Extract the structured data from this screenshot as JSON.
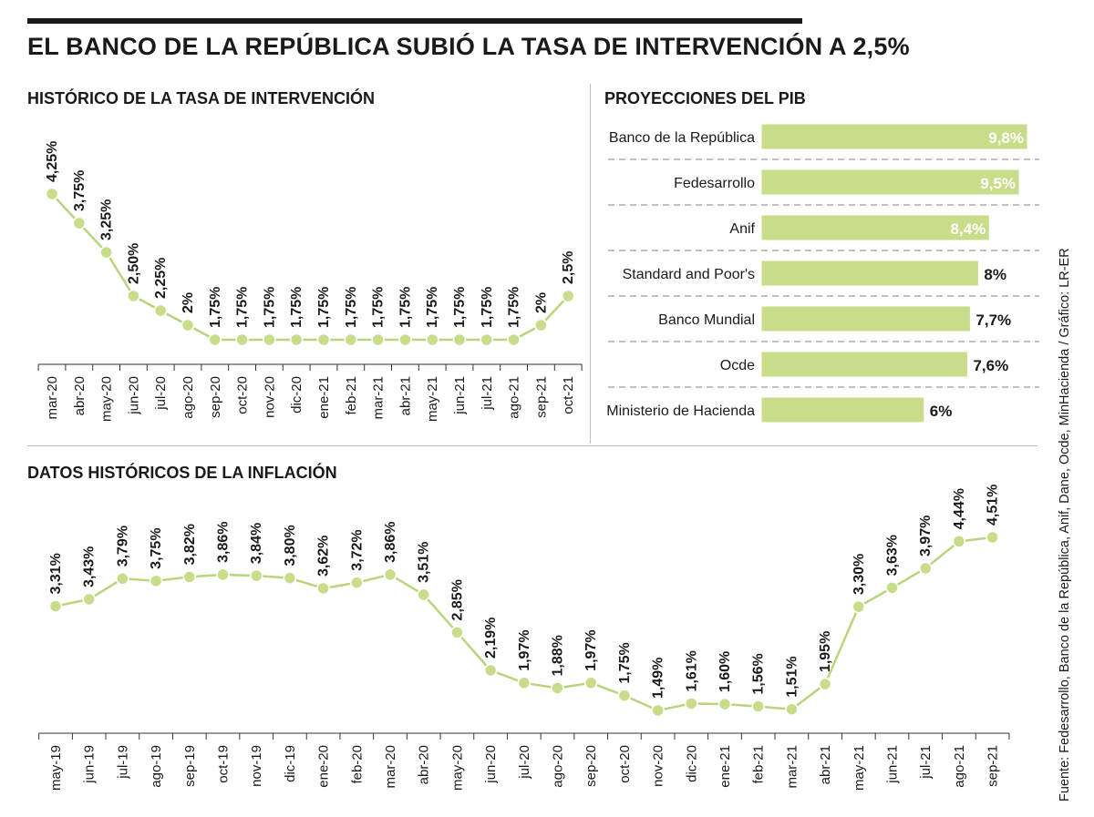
{
  "title": "EL BANCO DE LA REPÚBLICA SUBIÓ LA TASA DE INTERVENCIÓN A 2,5%",
  "source": "Fuente: Fedesarrollo, Banco de la República, Anif, Dane, Ocde, MinHacienda / Gráfico: LR-ER",
  "colors": {
    "accent": "#c8dc8a",
    "line": "#b9d47c",
    "text": "#1a1a1a",
    "bar_label_inside": "#ffffff"
  },
  "chart_data": [
    {
      "type": "line",
      "title": "HISTÓRICO DE LA TASA DE INTERVENCIÓN",
      "categories": [
        "mar-20",
        "abr-20",
        "may-20",
        "jun-20",
        "jul-20",
        "ago-20",
        "sep-20",
        "oct-20",
        "nov-20",
        "dic-20",
        "ene-21",
        "feb-21",
        "mar-21",
        "abr-21",
        "may-21",
        "jun-21",
        "jul-21",
        "ago-21",
        "sep-21",
        "oct-21"
      ],
      "values": [
        4.25,
        3.75,
        3.25,
        2.5,
        2.25,
        2,
        1.75,
        1.75,
        1.75,
        1.75,
        1.75,
        1.75,
        1.75,
        1.75,
        1.75,
        1.75,
        1.75,
        1.75,
        2,
        2.5
      ],
      "labels": [
        "4,25%",
        "3,75%",
        "3,25%",
        "2,50%",
        "2,25%",
        "2%",
        "1,75%",
        "1,75%",
        "1,75%",
        "1,75%",
        "1,75%",
        "1,75%",
        "1,75%",
        "1,75%",
        "1,75%",
        "1,75%",
        "1,75%",
        "1,75%",
        "2%",
        "2,5%"
      ],
      "ylim": [
        1.75,
        4.25
      ],
      "grid": false
    },
    {
      "type": "bar",
      "orientation": "horizontal",
      "title": "PROYECCIONES DEL PIB",
      "categories": [
        "Banco de la República",
        "Fedesarrollo",
        "Anif",
        "Standard and Poor's",
        "Banco Mundial",
        "Ocde",
        "Ministerio de Hacienda"
      ],
      "values": [
        9.8,
        9.5,
        8.4,
        8,
        7.7,
        7.6,
        6
      ],
      "labels": [
        "9,8%",
        "9,5%",
        "8,4%",
        "8%",
        "7,7%",
        "7,6%",
        "6%"
      ],
      "labels_inside": [
        true,
        true,
        true,
        false,
        false,
        false,
        false
      ],
      "xlim": [
        0,
        9.8
      ],
      "grid": false
    },
    {
      "type": "line",
      "title": "DATOS HISTÓRICOS DE LA INFLACIÓN",
      "categories": [
        "may-19",
        "jun-19",
        "jul-19",
        "ago-19",
        "sep-19",
        "oct-19",
        "nov-19",
        "dic-19",
        "ene-20",
        "feb-20",
        "mar-20",
        "abr-20",
        "may-20",
        "jun-20",
        "jul-20",
        "ago-20",
        "sep-20",
        "oct-20",
        "nov-20",
        "dic-20",
        "ene-21",
        "feb-21",
        "mar-21",
        "abr-21",
        "may-21",
        "jun-21",
        "jul-21",
        "ago-21",
        "sep-21"
      ],
      "values": [
        3.31,
        3.43,
        3.79,
        3.75,
        3.82,
        3.86,
        3.84,
        3.8,
        3.62,
        3.72,
        3.86,
        3.51,
        2.85,
        2.19,
        1.97,
        1.88,
        1.97,
        1.75,
        1.49,
        1.61,
        1.6,
        1.56,
        1.51,
        1.95,
        3.3,
        3.63,
        3.97,
        4.44,
        4.51
      ],
      "labels": [
        "3,31%",
        "3,43%",
        "3,79%",
        "3,75%",
        "3,82%",
        "3,86%",
        "3,84%",
        "3,80%",
        "3,62%",
        "3,72%",
        "3,86%",
        "3,51%",
        "2,85%",
        "2,19%",
        "1,97%",
        "1,88%",
        "1,97%",
        "1,75%",
        "1,49%",
        "1,61%",
        "1,60%",
        "1,56%",
        "1,51%",
        "1,95%",
        "3,30%",
        "3,63%",
        "3,97%",
        "4,44%",
        "4,51%"
      ],
      "grid": false
    }
  ]
}
